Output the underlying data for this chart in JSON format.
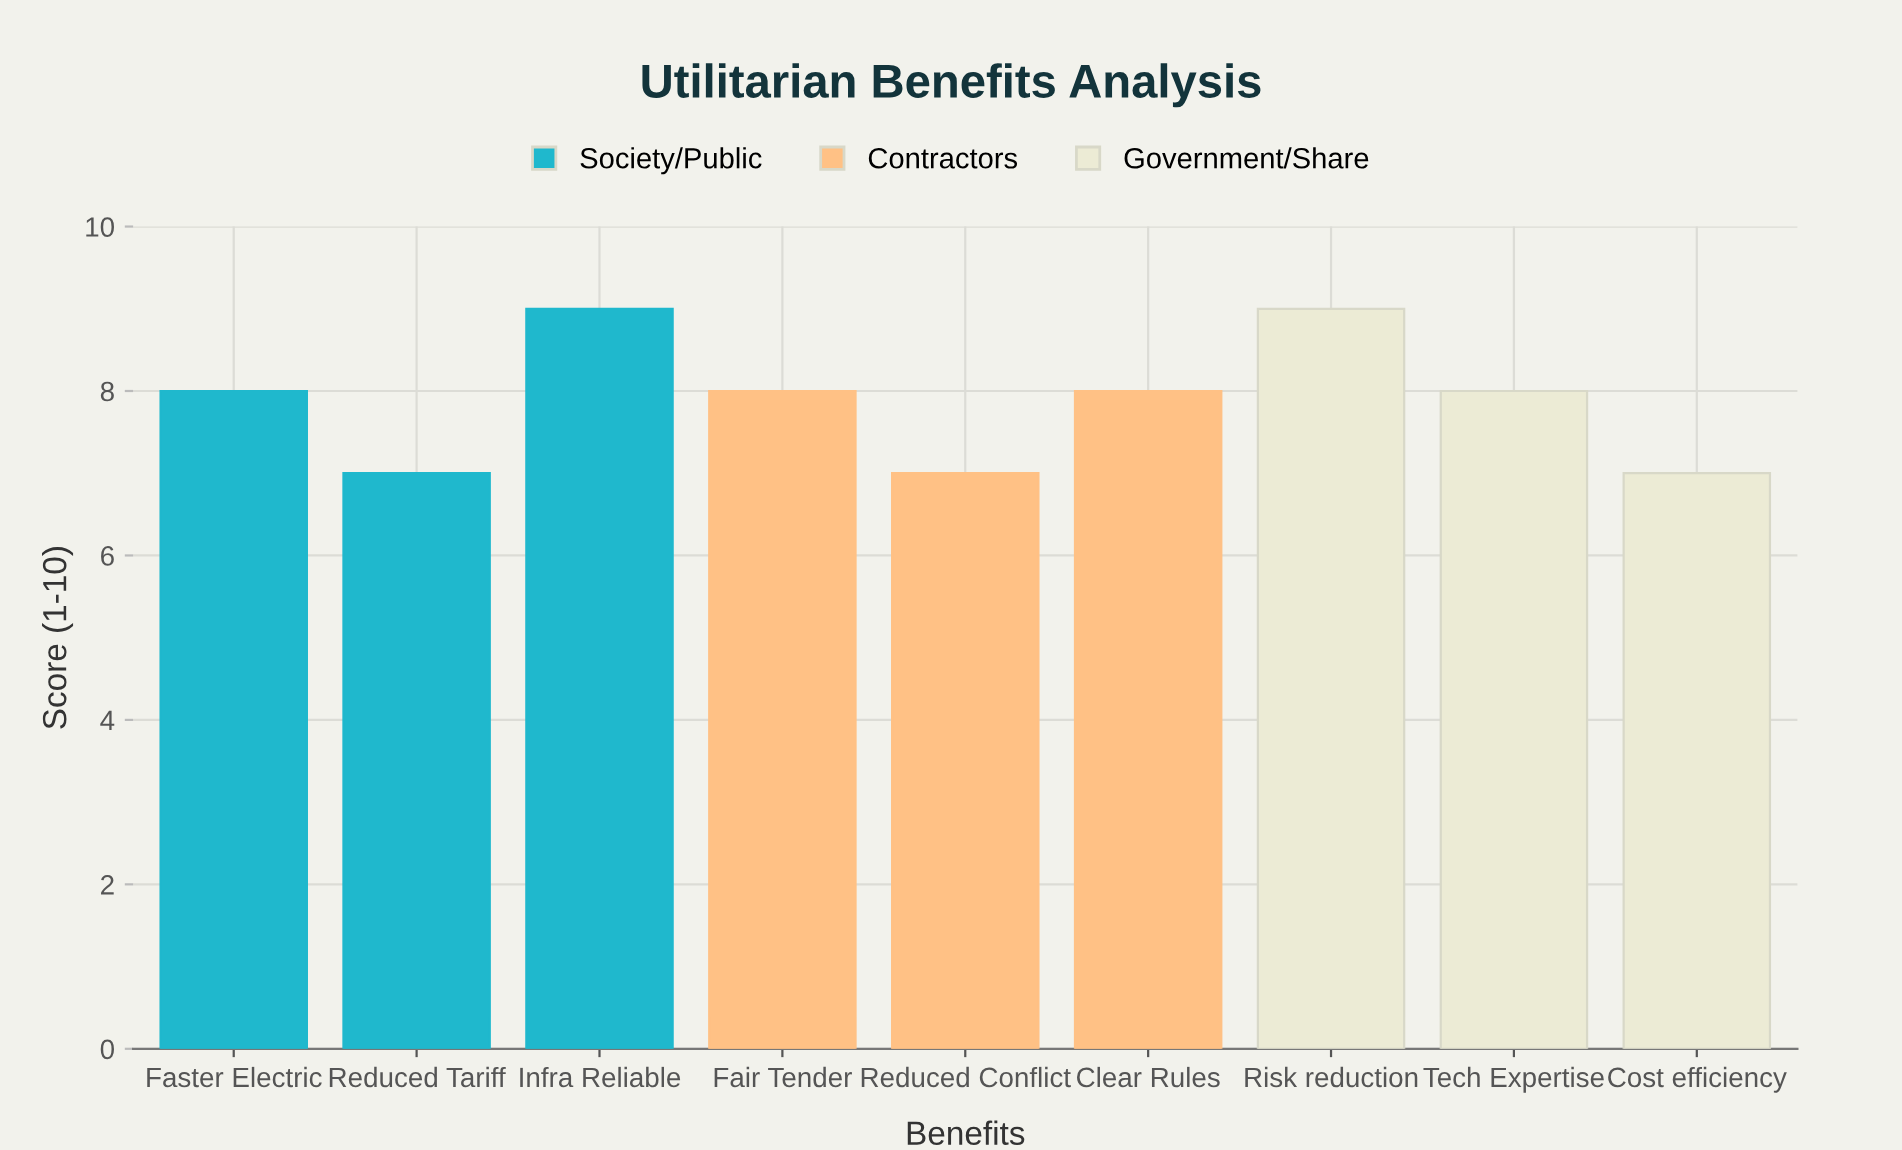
{
  "chart_data": {
    "type": "bar",
    "title": "Utilitarian Benefits Analysis",
    "xlabel": "Benefits",
    "ylabel": "Score (1-10)",
    "categories": [
      "Faster Electric",
      "Reduced Tariff",
      "Infra Reliable",
      "Fair Tender",
      "Reduced Conflict",
      "Clear Rules",
      "Risk reduction",
      "Tech Expertise",
      "Cost efficiency"
    ],
    "series": [
      {
        "name": "Society/Public",
        "color": "#1fb8cd",
        "values": [
          8,
          7,
          9,
          null,
          null,
          null,
          null,
          null,
          null
        ]
      },
      {
        "name": "Contractors",
        "color": "#ffc185",
        "values": [
          null,
          null,
          null,
          8,
          7,
          8,
          null,
          null,
          null
        ]
      },
      {
        "name": "Government/Share",
        "color": "#eceBd5",
        "values": [
          null,
          null,
          null,
          null,
          null,
          null,
          9,
          8,
          7
        ]
      }
    ],
    "ylim": [
      0,
      10
    ],
    "yticks": [
      0,
      2,
      4,
      6,
      8,
      10
    ],
    "grid": true,
    "legend": "top"
  }
}
